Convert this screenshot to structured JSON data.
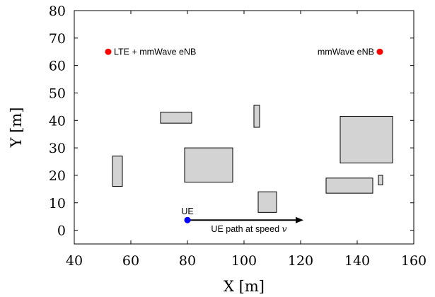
{
  "chart_data": {
    "type": "scatter",
    "title": "",
    "xlabel": "X [m]",
    "ylabel": "Y [m]",
    "xlim": [
      40,
      160
    ],
    "ylim": [
      -5,
      80
    ],
    "xticks": [
      40,
      60,
      80,
      100,
      120,
      140,
      160
    ],
    "yticks": [
      0,
      10,
      20,
      30,
      40,
      50,
      60,
      70,
      80
    ],
    "grid": false,
    "legend": "none",
    "colors": {
      "lte_enb": "#ff0000",
      "mmwave_enb": "#ff0000",
      "ue": "#0000ff",
      "building_fill": "#d3d3d3",
      "building_edge": "#000000"
    },
    "points": [
      {
        "id": "lte-mmwave-enb",
        "label": "LTE + mmWave eNB",
        "x": 52,
        "y": 65,
        "color": "#ff0000",
        "label_side": "right"
      },
      {
        "id": "mmwave-enb",
        "label": "mmWave eNB",
        "x": 148,
        "y": 65,
        "color": "#ff0000",
        "label_side": "left"
      },
      {
        "id": "ue",
        "label": "UE",
        "x": 80,
        "y": 3.7,
        "color": "#0000ff",
        "label_side": "above"
      }
    ],
    "buildings": [
      {
        "x1": 53.5,
        "y1": 16,
        "x2": 57,
        "y2": 27
      },
      {
        "x1": 70.5,
        "y1": 39,
        "x2": 81.5,
        "y2": 43
      },
      {
        "x1": 79,
        "y1": 17.5,
        "x2": 96,
        "y2": 30
      },
      {
        "x1": 103.5,
        "y1": 37.5,
        "x2": 105.5,
        "y2": 45.5
      },
      {
        "x1": 105,
        "y1": 6.5,
        "x2": 111.5,
        "y2": 14
      },
      {
        "x1": 134,
        "y1": 24.5,
        "x2": 152.5,
        "y2": 41.5
      },
      {
        "x1": 129,
        "y1": 13.5,
        "x2": 145.5,
        "y2": 19
      },
      {
        "x1": 147.5,
        "y1": 16.5,
        "x2": 149,
        "y2": 20
      }
    ],
    "path": {
      "label": "UE path at speed",
      "variable": "v",
      "x_start": 80,
      "x_end": 121,
      "y": 3.7
    }
  }
}
